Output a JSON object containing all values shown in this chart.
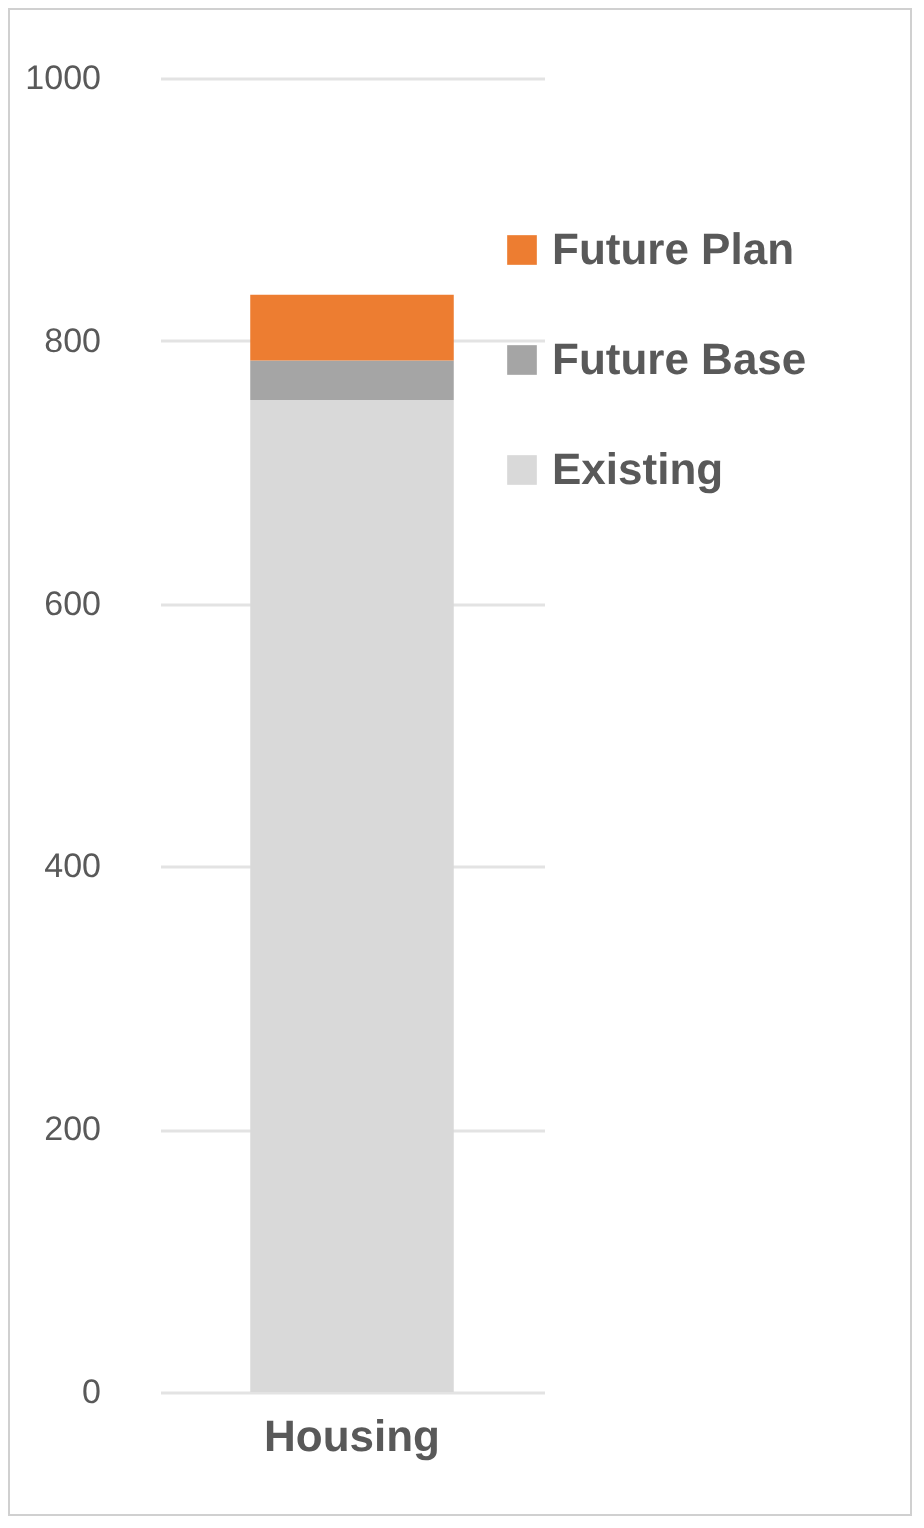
{
  "chart_data": {
    "type": "bar",
    "stacked": true,
    "categories": [
      "Housing"
    ],
    "series": [
      {
        "name": "Existing",
        "color": "#d9d9d9",
        "values": [
          755
        ]
      },
      {
        "name": "Future Base",
        "color": "#a5a5a5",
        "values": [
          30
        ]
      },
      {
        "name": "Future Plan",
        "color": "#ed7d31",
        "values": [
          50
        ]
      }
    ],
    "ylim": [
      0,
      1000
    ],
    "yticks": [
      0,
      200,
      400,
      600,
      800,
      1000
    ],
    "grid": "y",
    "legend": "top right"
  }
}
